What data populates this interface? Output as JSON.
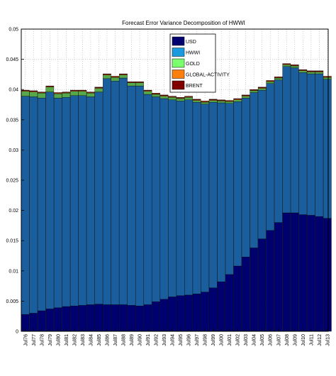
{
  "chart_data": {
    "type": "bar",
    "stacked": true,
    "title": "Forecast Error Variance Decomposition of HWWI",
    "ylim": [
      0,
      0.05
    ],
    "yticks": [
      "0",
      "0.005",
      "0.01",
      "0.015",
      "0.02",
      "0.025",
      "0.03",
      "0.035",
      "0.04",
      "0.045",
      "0.05"
    ],
    "ytick_values": [
      0,
      0.005,
      0.01,
      0.015,
      0.02,
      0.025,
      0.03,
      0.035,
      0.04,
      0.045,
      0.05
    ],
    "grid": true,
    "legend_position": "top-center",
    "xticks": [
      "Jul76",
      "Jul77",
      "Jul78",
      "Jul79",
      "Jul80",
      "Jul81",
      "Jul82",
      "Jul83",
      "Jul84",
      "Jul85",
      "Jul86",
      "Jul87",
      "Jul88",
      "Jul89",
      "Jul90",
      "Jul91",
      "Jul92",
      "Jul93",
      "Jul94",
      "Jul95",
      "Jul96",
      "Jul97",
      "Jul98",
      "Jul99",
      "Jul00",
      "Jul01",
      "Jul02",
      "Jul03",
      "Jul04",
      "Jul05",
      "Jul06",
      "Jul07",
      "Jul08",
      "Jul09",
      "Jul10",
      "Jul11",
      "Jul12",
      "Jul13"
    ],
    "x": [
      1976,
      1977,
      1978,
      1979,
      1980,
      1981,
      1982,
      1983,
      1984,
      1985,
      1986,
      1987,
      1988,
      1989,
      1990,
      1991,
      1992,
      1993,
      1994,
      1995,
      1996,
      1997,
      1998,
      1999,
      2000,
      2001,
      2002,
      2003,
      2004,
      2005,
      2006,
      2007,
      2008,
      2009,
      2010,
      2011,
      2012,
      2013
    ],
    "series": [
      {
        "name": "USD",
        "color": "#00006e",
        "values": [
          0.0028,
          0.003,
          0.0034,
          0.0037,
          0.0039,
          0.0041,
          0.0042,
          0.0043,
          0.0044,
          0.0045,
          0.0044,
          0.0044,
          0.0044,
          0.0043,
          0.0042,
          0.0044,
          0.0049,
          0.0053,
          0.0057,
          0.0059,
          0.006,
          0.0062,
          0.0065,
          0.0072,
          0.0082,
          0.0094,
          0.0108,
          0.0123,
          0.0138,
          0.0153,
          0.0167,
          0.018,
          0.0196,
          0.0196,
          0.0193,
          0.0192,
          0.019,
          0.0187
        ]
      },
      {
        "name": "HWWI",
        "color": "#1a5e9e",
        "values": [
          0.0361,
          0.0358,
          0.0352,
          0.0359,
          0.0347,
          0.0346,
          0.0348,
          0.0347,
          0.0344,
          0.0351,
          0.0374,
          0.037,
          0.0375,
          0.0363,
          0.0364,
          0.0348,
          0.0339,
          0.0332,
          0.0326,
          0.0322,
          0.0323,
          0.0317,
          0.0311,
          0.0307,
          0.0296,
          0.0283,
          0.0272,
          0.0263,
          0.0257,
          0.0246,
          0.0243,
          0.0236,
          0.0242,
          0.024,
          0.0235,
          0.0234,
          0.0236,
          0.023
        ]
      },
      {
        "name": "GOLD",
        "color": "#57a84a",
        "values": [
          0.0008,
          0.0008,
          0.0008,
          0.0008,
          0.0007,
          0.0007,
          0.0007,
          0.0007,
          0.0006,
          0.0006,
          0.0006,
          0.0006,
          0.0005,
          0.0005,
          0.0005,
          0.0005,
          0.0004,
          0.0004,
          0.0004,
          0.0004,
          0.0004,
          0.0003,
          0.0003,
          0.0003,
          0.0003,
          0.0003,
          0.0003,
          0.0003,
          0.0003,
          0.0003,
          0.0003,
          0.0003,
          0.0003,
          0.0003,
          0.0003,
          0.0003,
          0.0003,
          0.0003
        ]
      },
      {
        "name": "GLOBAL-ACTIVITY",
        "color": "#ff7f0e",
        "values": [
          0.0001,
          0.0001,
          0.0001,
          0.0001,
          0.0001,
          0.0001,
          0.0001,
          0.0001,
          0.0001,
          0.0001,
          0.0001,
          0.0001,
          0.0001,
          0.0001,
          0.0001,
          0.0001,
          0.0001,
          0.0001,
          0.0001,
          0.0001,
          0.0001,
          0.0001,
          0.0001,
          0.0001,
          0.0001,
          0.0001,
          0.0001,
          0.0001,
          0.0001,
          0.0001,
          0.0001,
          0.0001,
          0.0001,
          0.0001,
          0.0001,
          0.0001,
          0.0001,
          0.0001
        ]
      },
      {
        "name": "BRENT",
        "color": "#800000",
        "values": [
          0.0001,
          0.0001,
          0.0001,
          0.0001,
          0.0001,
          0.0001,
          0.0001,
          0.0001,
          0.0001,
          0.0001,
          0.0001,
          0.0001,
          0.0001,
          0.0001,
          0.0001,
          0.0001,
          0.0001,
          0.0001,
          0.0001,
          0.0001,
          0.0001,
          0.0001,
          0.0001,
          0.0001,
          0.0001,
          0.0001,
          0.0001,
          0.0001,
          0.0001,
          0.0001,
          0.0001,
          0.0001,
          0.0001,
          0.0001,
          0.0001,
          0.0001,
          0.0001,
          0.0001
        ]
      }
    ],
    "legend_colors": {
      "USD": "#00006e",
      "HWWI": "#1a9be0",
      "GOLD": "#7cff6e",
      "GLOBAL-ACTIVITY": "#ff7f0e",
      "BRENT": "#800000"
    }
  }
}
